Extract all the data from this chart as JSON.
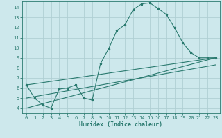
{
  "xlabel": "Humidex (Indice chaleur)",
  "bg_color": "#cde8ec",
  "grid_color": "#b0cfd4",
  "line_color": "#2a7a6f",
  "xlim": [
    -0.5,
    23.5
  ],
  "ylim": [
    3.5,
    14.6
  ],
  "xticks": [
    0,
    1,
    2,
    3,
    4,
    5,
    6,
    7,
    8,
    9,
    10,
    11,
    12,
    13,
    14,
    15,
    16,
    17,
    18,
    19,
    20,
    21,
    22,
    23
  ],
  "yticks": [
    4,
    5,
    6,
    7,
    8,
    9,
    10,
    11,
    12,
    13,
    14
  ],
  "series1_x": [
    0,
    1,
    2,
    3,
    4,
    5,
    6,
    7,
    8,
    9,
    10,
    11,
    12,
    13,
    14,
    15,
    16,
    17,
    18,
    19,
    20,
    21,
    22,
    23
  ],
  "series1_y": [
    6.3,
    5.0,
    4.3,
    4.0,
    5.9,
    6.0,
    6.3,
    5.0,
    4.8,
    8.4,
    9.9,
    11.7,
    12.3,
    13.8,
    14.35,
    14.45,
    13.9,
    13.3,
    12.0,
    10.5,
    9.5,
    9.0,
    9.0,
    9.0
  ],
  "series2_x": [
    0,
    23
  ],
  "series2_y": [
    6.3,
    9.0
  ],
  "series3_x": [
    0,
    23
  ],
  "series3_y": [
    4.0,
    9.0
  ],
  "series4_x": [
    0,
    23
  ],
  "series4_y": [
    5.0,
    8.3
  ]
}
